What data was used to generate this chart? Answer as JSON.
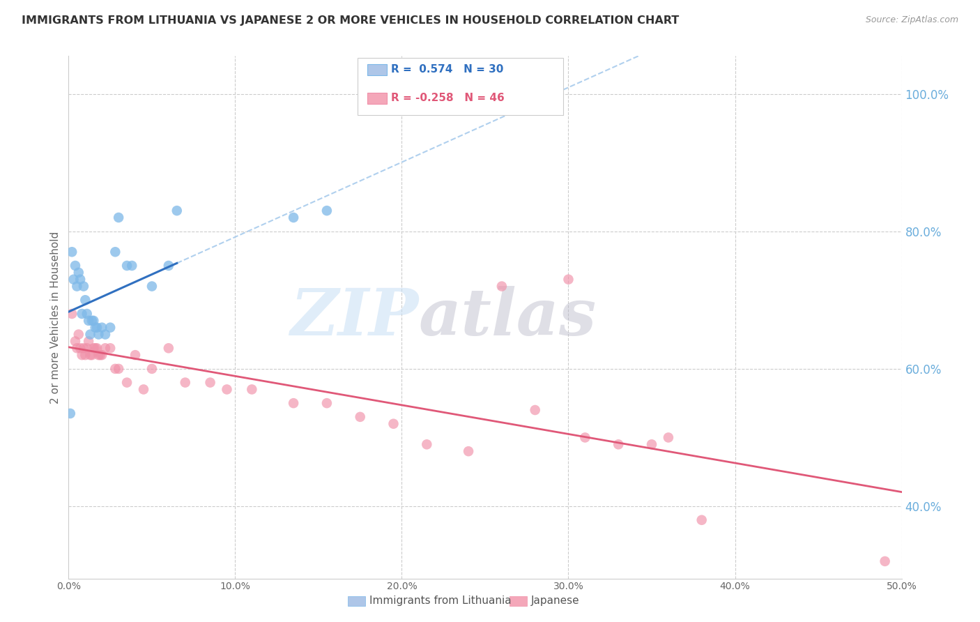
{
  "title": "IMMIGRANTS FROM LITHUANIA VS JAPANESE 2 OR MORE VEHICLES IN HOUSEHOLD CORRELATION CHART",
  "source": "Source: ZipAtlas.com",
  "ylabel": "2 or more Vehicles in Household",
  "legend_entries": [
    {
      "label": "Immigrants from Lithuania",
      "color": "#aec6e8"
    },
    {
      "label": "Japanese",
      "color": "#f4a7b9"
    }
  ],
  "series1_label": "R =  0.574   N = 30",
  "series2_label": "R = -0.258   N = 46",
  "series1_scatter_color": "#7db8e8",
  "series2_scatter_color": "#f090a8",
  "series1_line_color": "#3070c0",
  "series2_line_color": "#e05878",
  "dashed_line_color": "#b0d0ee",
  "background_color": "#ffffff",
  "right_tick_color": "#6aaddc",
  "xlim": [
    0.0,
    0.5
  ],
  "ylim": [
    0.295,
    1.055
  ],
  "yticks": [
    0.4,
    0.6,
    0.8,
    1.0
  ],
  "ytick_labels": [
    "40.0%",
    "60.0%",
    "80.0%",
    "100.0%"
  ],
  "xticks": [
    0.0,
    0.1,
    0.2,
    0.3,
    0.4,
    0.5
  ],
  "xtick_labels": [
    "0.0%",
    "10.0%",
    "20.0%",
    "30.0%",
    "40.0%",
    "50.0%"
  ],
  "blue_x": [
    0.001,
    0.002,
    0.003,
    0.004,
    0.005,
    0.006,
    0.007,
    0.008,
    0.009,
    0.01,
    0.011,
    0.012,
    0.013,
    0.014,
    0.015,
    0.016,
    0.017,
    0.018,
    0.02,
    0.022,
    0.025,
    0.028,
    0.03,
    0.035,
    0.038,
    0.05,
    0.06,
    0.065,
    0.135,
    0.155
  ],
  "blue_y": [
    0.535,
    0.77,
    0.73,
    0.75,
    0.72,
    0.74,
    0.73,
    0.68,
    0.72,
    0.7,
    0.68,
    0.67,
    0.65,
    0.67,
    0.67,
    0.66,
    0.66,
    0.65,
    0.66,
    0.65,
    0.66,
    0.77,
    0.82,
    0.75,
    0.75,
    0.72,
    0.75,
    0.83,
    0.82,
    0.83
  ],
  "pink_x": [
    0.002,
    0.004,
    0.005,
    0.006,
    0.007,
    0.008,
    0.009,
    0.01,
    0.011,
    0.012,
    0.013,
    0.014,
    0.015,
    0.016,
    0.017,
    0.018,
    0.019,
    0.02,
    0.022,
    0.025,
    0.028,
    0.03,
    0.035,
    0.04,
    0.045,
    0.05,
    0.06,
    0.07,
    0.085,
    0.095,
    0.11,
    0.135,
    0.155,
    0.175,
    0.195,
    0.215,
    0.24,
    0.26,
    0.28,
    0.3,
    0.31,
    0.33,
    0.35,
    0.36,
    0.38,
    0.49
  ],
  "pink_y": [
    0.68,
    0.64,
    0.63,
    0.65,
    0.63,
    0.62,
    0.63,
    0.62,
    0.63,
    0.64,
    0.62,
    0.62,
    0.63,
    0.63,
    0.63,
    0.62,
    0.62,
    0.62,
    0.63,
    0.63,
    0.6,
    0.6,
    0.58,
    0.62,
    0.57,
    0.6,
    0.63,
    0.58,
    0.58,
    0.57,
    0.57,
    0.55,
    0.55,
    0.53,
    0.52,
    0.49,
    0.48,
    0.72,
    0.54,
    0.73,
    0.5,
    0.49,
    0.49,
    0.5,
    0.38,
    0.32
  ]
}
